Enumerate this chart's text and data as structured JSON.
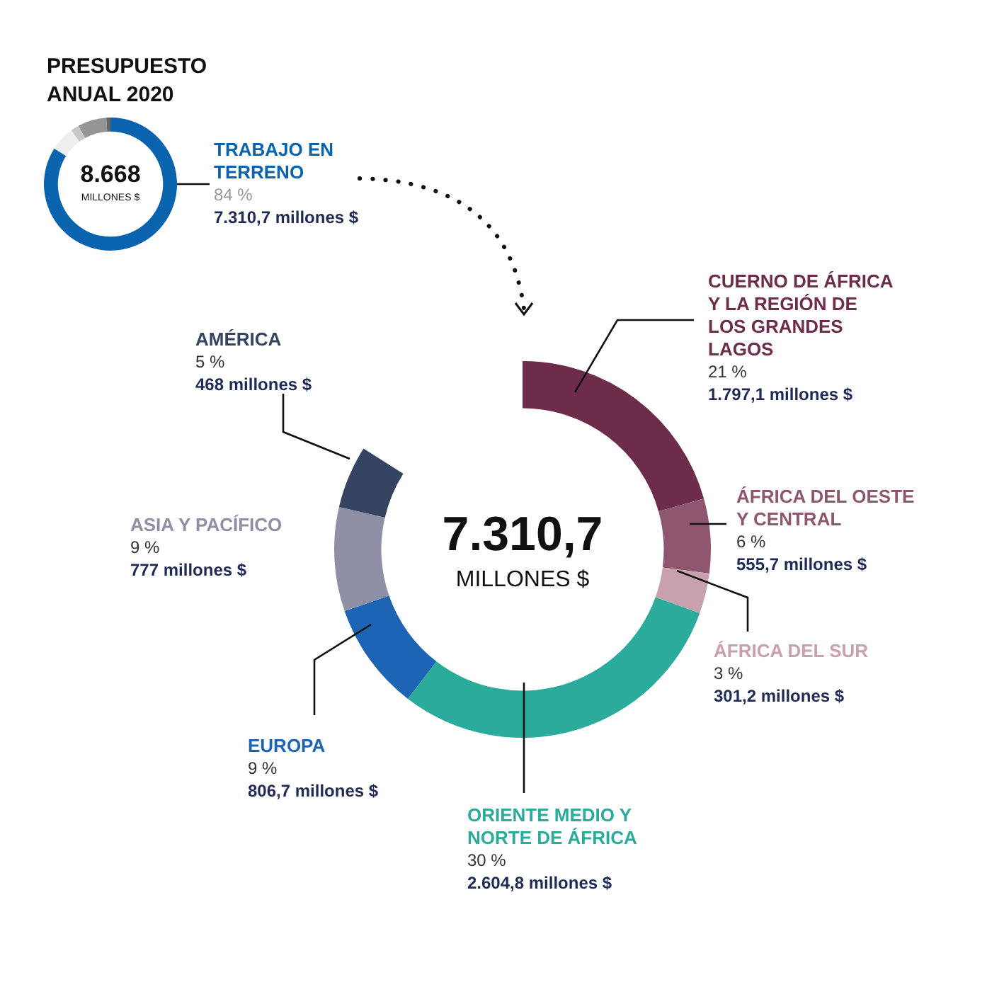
{
  "chart_data": [
    {
      "type": "donut",
      "title": "PRESUPUESTO ANUAL 2020",
      "categories": [
        "TRABAJO EN TERRENO",
        null,
        null,
        null,
        null
      ],
      "values": [
        84,
        6,
        2,
        7,
        1
      ],
      "colors": [
        "#0a63ad",
        "#eeeeee",
        "#c8c8c8",
        "#959595",
        "#666666"
      ],
      "value_labels": [
        "84 %\n7.310,7 millones $",
        null,
        null,
        null,
        null
      ],
      "annotations": [
        "8.668",
        "MILLONES $"
      ]
    },
    {
      "type": "donut",
      "categories": [
        "CUERNO DE ÁFRICA Y LA REGIÓN DE LOS GRANDES LAGOS",
        "ÁFRICA DEL OESTE Y CENTRAL",
        "ÁFRICA DEL SUR",
        "ORIENTE MEDIO Y NORTE DE ÁFRICA",
        "EUROPA",
        "ASIA Y PACÍFICO",
        "AMÉRICA"
      ],
      "values": [
        1797.1,
        555.7,
        301.2,
        2604.8,
        806.7,
        777,
        468
      ],
      "colors": [
        "#6e2c4b",
        "#8e566f",
        "#c8a0ae",
        "#2aab9b",
        "#1e64b4",
        "#8f8fa6",
        "#354461"
      ],
      "value_labels": [
        "21 %\n1.797,1 millones $",
        "6 %\n555,7 millones $",
        "3 %\n301,2 millones $",
        "30 %\n2.604,8 millones $",
        "9 %\n806,7 millones $",
        "9 %\n777 millones $",
        "5 %\n468 millones $"
      ],
      "annotations": [
        "7.310,7",
        "MILLONES $"
      ]
    }
  ]
}
